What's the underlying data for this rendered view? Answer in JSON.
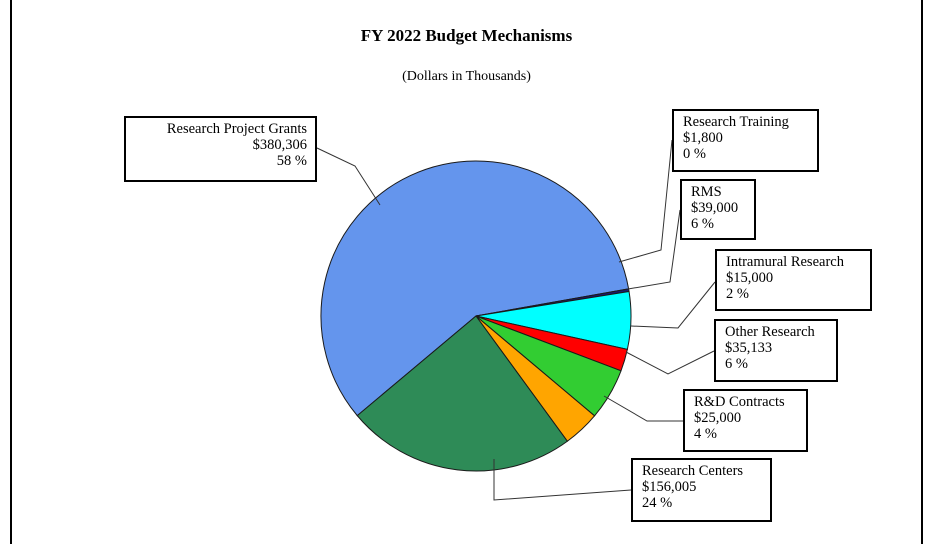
{
  "chart_data": {
    "type": "pie",
    "title": "FY 2022 Budget Mechanisms",
    "subtitle": "(Dollars in Thousands)",
    "slices": [
      {
        "name": "Research Project Grants",
        "value": 380306,
        "value_label": "$380,306",
        "percent_label": "58 %",
        "color": "#6495ED"
      },
      {
        "name": "Research Training",
        "value": 1800,
        "value_label": "$1,800",
        "percent_label": "0 %",
        "color": "#191970"
      },
      {
        "name": "RMS",
        "value": 39000,
        "value_label": "$39,000",
        "percent_label": "6 %",
        "color": "#00FFFF"
      },
      {
        "name": "Intramural Research",
        "value": 15000,
        "value_label": "$15,000",
        "percent_label": "2 %",
        "color": "#FF0000"
      },
      {
        "name": "Other Research",
        "value": 35133,
        "value_label": "$35,133",
        "percent_label": "6 %",
        "color": "#32CD32"
      },
      {
        "name": "R&D Contracts",
        "value": 25000,
        "value_label": "$25,000",
        "percent_label": "4 %",
        "color": "#FFA500"
      },
      {
        "name": "Research Centers",
        "value": 156005,
        "value_label": "$156,005",
        "percent_label": "24 %",
        "color": "#2E8B57"
      }
    ]
  }
}
